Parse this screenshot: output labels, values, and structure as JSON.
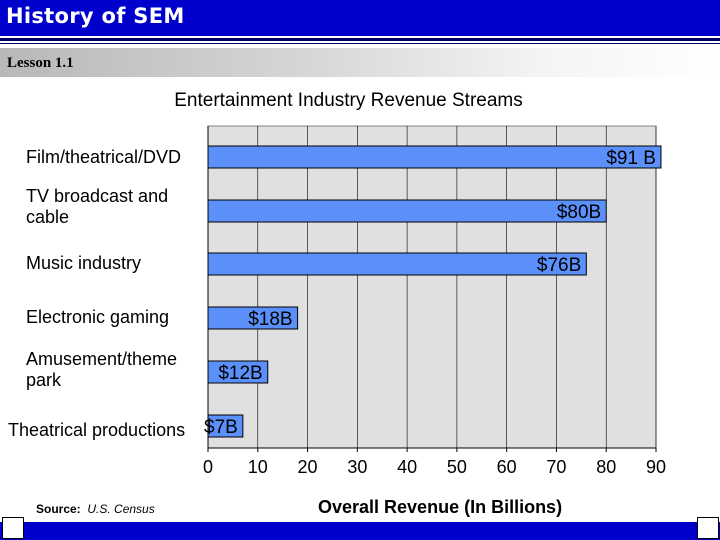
{
  "header": {
    "title": "History of SEM",
    "lesson": "Lesson 1.1"
  },
  "colors": {
    "title_bar": "#0000cc",
    "bar_fill": "#5b8ff9",
    "plot_bg": "#e0e0e0"
  },
  "chart_data": {
    "type": "bar",
    "orientation": "horizontal",
    "title": "Entertainment Industry Revenue Streams",
    "xlabel": "Overall Revenue (In Billions)",
    "ylabel": "",
    "categories": [
      "Film/theatrical/DVD",
      "TV broadcast and cable",
      "Music industry",
      "Electronic gaming",
      "Amusement/theme park",
      "Theatrical productions"
    ],
    "values": [
      91,
      80,
      76,
      18,
      12,
      7
    ],
    "data_labels": [
      "$91 B",
      "$80B",
      "$76B",
      "$18B",
      "$12B",
      "$7B"
    ],
    "xlim": [
      0,
      90
    ],
    "xticks": [
      0,
      10,
      20,
      30,
      40,
      50,
      60,
      70,
      80,
      90
    ],
    "grid": true,
    "legend": "none"
  },
  "source": {
    "label": "Source:",
    "text": "U.S. Census"
  }
}
